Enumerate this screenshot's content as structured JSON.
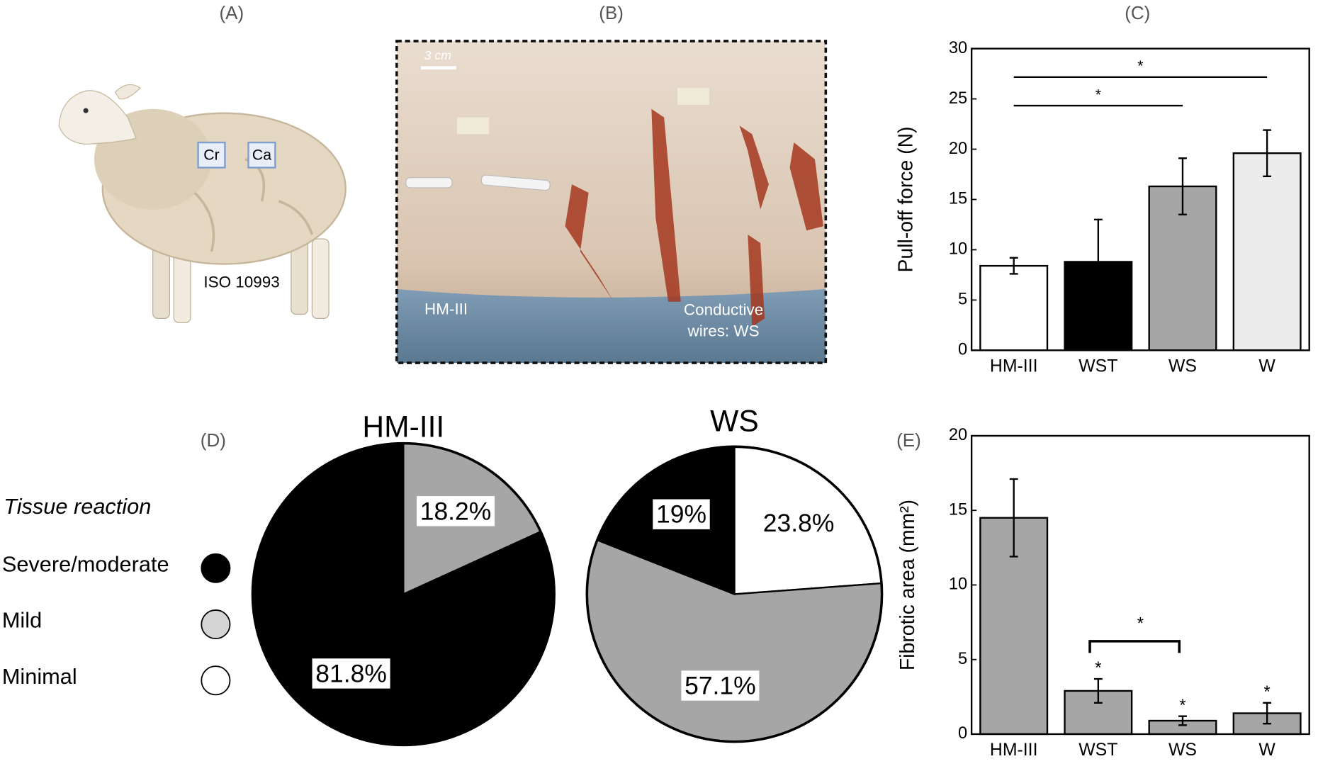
{
  "panels": {
    "A": "(A)",
    "B": "(B)",
    "C": "(C)",
    "D": "(D)",
    "E": "(E)"
  },
  "illustration": {
    "labels": [
      "Cr",
      "Ca"
    ],
    "caption": "ISO 10993"
  },
  "photo": {
    "scale_bar": "3 cm",
    "left_label": "HM-III",
    "right_label": [
      "Conductive",
      "wires: WS"
    ]
  },
  "legend": {
    "title": "Tissue reaction",
    "items": [
      {
        "label": "Severe/moderate",
        "color": "#000000"
      },
      {
        "label": "Mild",
        "color": "#d4d4d4"
      },
      {
        "label": "Minimal",
        "color": "#ffffff"
      }
    ]
  },
  "chart_data": [
    {
      "type": "bar",
      "ylabel": "Pull-off force (N)",
      "categories": [
        "HM-III",
        "WST",
        "WS",
        "W"
      ],
      "values": [
        8.4,
        8.8,
        16.3,
        19.6
      ],
      "errors": [
        0.8,
        4.2,
        2.8,
        2.3
      ],
      "colors": [
        "#ffffff",
        "#000000",
        "#a6a6a6",
        "#ececec"
      ],
      "ylim": [
        0,
        30
      ],
      "yticks": [
        0,
        5,
        10,
        15,
        20,
        25,
        30
      ],
      "annotations": [
        {
          "text": "*",
          "between": [
            "HM-III",
            "W"
          ]
        },
        {
          "text": "*",
          "between": [
            "HM-III",
            "WS"
          ]
        }
      ]
    },
    {
      "type": "pie",
      "title": "HM-III",
      "values": [
        18.2,
        81.8
      ],
      "value_labels": [
        "18.2%",
        "81.8%"
      ],
      "colors": [
        "#a6a6a6",
        "#000000"
      ]
    },
    {
      "type": "pie",
      "title": "WS",
      "values": [
        23.8,
        57.1,
        19
      ],
      "value_labels": [
        "23.8%",
        "57.1%",
        "19%"
      ],
      "colors": [
        "#ffffff",
        "#a6a6a6",
        "#000000"
      ]
    },
    {
      "type": "bar",
      "ylabel": "Fibrotic area (mm²)",
      "categories": [
        "HM-III",
        "WST",
        "WS",
        "W"
      ],
      "values": [
        14.5,
        2.9,
        0.9,
        1.4
      ],
      "errors": [
        2.6,
        0.8,
        0.3,
        0.7
      ],
      "colors": [
        "#a6a6a6",
        "#a6a6a6",
        "#a6a6a6",
        "#a6a6a6"
      ],
      "ylim": [
        0,
        20
      ],
      "yticks": [
        0,
        5,
        10,
        15,
        20
      ],
      "markers": [
        null,
        "*",
        "*",
        "*"
      ],
      "annotations": [
        {
          "text": "*",
          "between": [
            "WST",
            "WS"
          ],
          "style": "bracket"
        }
      ]
    }
  ]
}
